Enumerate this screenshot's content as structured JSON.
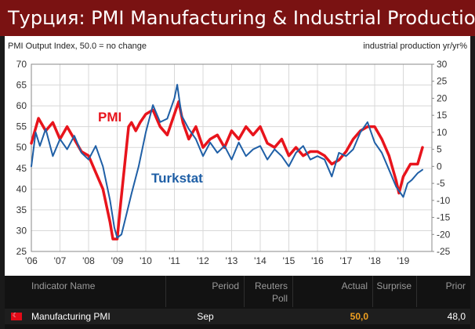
{
  "title": "Турция: PMI Manufacturing & Industrial Production",
  "chart_data": {
    "type": "line",
    "title": "",
    "left_axis_label": "PMI Output Index, 50.0 = no change",
    "right_axis_label": "industrial production yr/yr%",
    "y_left": {
      "min": 25,
      "max": 70,
      "ticks": [
        "25",
        "30",
        "35",
        "40",
        "45",
        "50",
        "55",
        "60",
        "65",
        "70"
      ]
    },
    "y_right": {
      "min": -25,
      "max": 30,
      "ticks": [
        "-25",
        "-20",
        "-15",
        "-10",
        "-5",
        "0",
        "5",
        "10",
        "15",
        "20",
        "25",
        "30"
      ]
    },
    "x_axis": {
      "min": 2006,
      "max": 2020,
      "ticks": [
        "'06",
        "'07",
        "'08",
        "'09",
        "'10",
        "'11",
        "'12",
        "'13",
        "'14",
        "'15",
        "'16",
        "'17",
        "'18",
        "'19"
      ]
    },
    "grid": true,
    "series": [
      {
        "name": "PMI",
        "axis": "left",
        "color": "#e8141c",
        "x": [
          2006.0,
          2006.25,
          2006.5,
          2006.75,
          2007.0,
          2007.25,
          2007.5,
          2007.75,
          2008.0,
          2008.25,
          2008.5,
          2008.75,
          2008.85,
          2009.0,
          2009.1,
          2009.25,
          2009.4,
          2009.5,
          2009.65,
          2009.8,
          2010.0,
          2010.25,
          2010.5,
          2010.75,
          2011.0,
          2011.15,
          2011.3,
          2011.5,
          2011.75,
          2012.0,
          2012.25,
          2012.5,
          2012.75,
          2013.0,
          2013.25,
          2013.5,
          2013.75,
          2014.0,
          2014.25,
          2014.5,
          2014.75,
          2015.0,
          2015.25,
          2015.5,
          2015.75,
          2016.0,
          2016.25,
          2016.5,
          2016.75,
          2017.0,
          2017.25,
          2017.5,
          2017.75,
          2018.0,
          2018.25,
          2018.5,
          2018.75,
          2018.85,
          2019.0,
          2019.25,
          2019.5,
          2019.67
        ],
        "y": [
          51,
          57,
          54,
          56,
          52,
          55,
          52,
          49,
          48,
          44,
          40,
          32,
          28,
          28,
          35,
          45,
          55,
          56,
          54,
          56,
          58,
          59,
          55,
          53,
          58,
          61,
          56,
          52,
          55,
          50,
          52,
          53,
          50,
          54,
          52,
          55,
          53,
          55,
          51,
          50,
          52,
          48,
          50,
          48,
          49,
          49,
          48,
          46,
          47,
          49,
          52,
          54,
          55,
          55,
          52,
          48,
          42,
          39,
          43,
          46,
          46,
          50
        ]
      },
      {
        "name": "Turkstat",
        "axis": "right",
        "color": "#1f5fa6",
        "x": [
          2006.0,
          2006.15,
          2006.3,
          2006.5,
          2006.75,
          2007.0,
          2007.25,
          2007.5,
          2007.75,
          2008.0,
          2008.25,
          2008.5,
          2008.75,
          2008.9,
          2009.0,
          2009.15,
          2009.3,
          2009.5,
          2009.75,
          2010.0,
          2010.25,
          2010.5,
          2010.75,
          2011.0,
          2011.1,
          2011.25,
          2011.5,
          2011.75,
          2012.0,
          2012.25,
          2012.5,
          2012.75,
          2013.0,
          2013.25,
          2013.5,
          2013.75,
          2014.0,
          2014.25,
          2014.5,
          2014.75,
          2015.0,
          2015.25,
          2015.5,
          2015.75,
          2016.0,
          2016.25,
          2016.5,
          2016.75,
          2017.0,
          2017.25,
          2017.5,
          2017.75,
          2018.0,
          2018.25,
          2018.5,
          2018.75,
          2019.0,
          2019.15,
          2019.3,
          2019.5,
          2019.67
        ],
        "y": [
          0,
          10,
          6,
          11,
          3,
          8,
          5,
          9,
          4,
          2,
          6,
          0,
          -10,
          -18,
          -21,
          -20,
          -15,
          -8,
          0,
          10,
          18,
          13,
          14,
          20,
          24,
          15,
          11,
          8,
          3,
          7,
          4,
          6,
          2,
          7,
          3,
          5,
          6,
          2,
          5,
          3,
          0,
          4,
          6,
          2,
          3,
          2,
          -3,
          4,
          3,
          5,
          10,
          13,
          7,
          4,
          -1,
          -6,
          -9,
          -5,
          -4,
          -2,
          -1
        ]
      }
    ],
    "annotations": [
      {
        "text": "PMI",
        "color": "#e8141c"
      },
      {
        "text": "Turkstat",
        "color": "#1f5fa6"
      }
    ]
  },
  "table": {
    "headers": [
      "Indicator Name",
      "Period",
      "Reuters Poll",
      "Actual",
      "Surprise",
      "Prior"
    ],
    "row": {
      "indicator": "Manufacturing PMI",
      "period": "Sep",
      "reuters_poll": "",
      "actual": "50,0",
      "surprise": "",
      "prior": "48,0"
    },
    "actual_color": "#f0a020"
  }
}
